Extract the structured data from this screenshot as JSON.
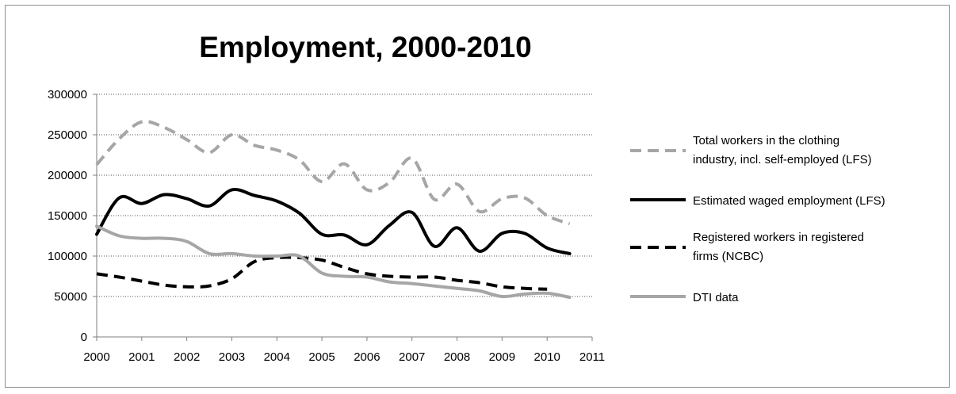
{
  "chart_data": {
    "type": "line",
    "title": "Employment, 2000-2010",
    "xlabel": "",
    "ylabel": "",
    "xlim": [
      2000,
      2011
    ],
    "ylim": [
      0,
      300000
    ],
    "x_ticks": [
      "2000",
      "2001",
      "2002",
      "2003",
      "2004",
      "2005",
      "2006",
      "2007",
      "2008",
      "2009",
      "2010",
      "2011"
    ],
    "y_ticks": [
      "0",
      "50000",
      "100000",
      "150000",
      "200000",
      "250000",
      "300000"
    ],
    "grid": "horizontal dotted",
    "legend_position": "right",
    "series": [
      {
        "name": "Total workers in the clothing industry, incl. self-employed (LFS)",
        "legend_lines": [
          "Total workers in the clothing",
          "industry, incl. self-employed (LFS)"
        ],
        "color": "#a6a6a6",
        "style": "dashed",
        "x": [
          2000,
          2000.5,
          2001,
          2001.5,
          2002,
          2002.5,
          2003,
          2003.5,
          2004,
          2004.5,
          2005,
          2005.5,
          2006,
          2006.5,
          2007,
          2007.5,
          2008,
          2008.5,
          2009,
          2009.5,
          2010,
          2010.5
        ],
        "values": [
          213000,
          245000,
          266000,
          259000,
          244000,
          228000,
          250000,
          237000,
          231000,
          219000,
          192000,
          214000,
          182000,
          191000,
          221000,
          170000,
          189000,
          155000,
          171000,
          172000,
          150000,
          140000
        ]
      },
      {
        "name": "Estimated waged employment (LFS)",
        "legend_lines": [
          "Estimated waged employment (LFS)"
        ],
        "color": "#000000",
        "style": "solid",
        "x": [
          2000,
          2000.5,
          2001,
          2001.5,
          2002,
          2002.5,
          2003,
          2003.5,
          2004,
          2004.5,
          2005,
          2005.5,
          2006,
          2006.5,
          2007,
          2007.5,
          2008,
          2008.5,
          2009,
          2009.5,
          2010,
          2010.5
        ],
        "values": [
          127000,
          172000,
          165000,
          176000,
          171000,
          162000,
          182000,
          175000,
          168000,
          153000,
          127000,
          126000,
          114000,
          138000,
          154000,
          112000,
          135000,
          106000,
          128000,
          128000,
          110000,
          103000
        ]
      },
      {
        "name": "Registered workers in registered firms (NCBC)",
        "legend_lines": [
          "Registered workers in registered",
          "firms (NCBC)"
        ],
        "color": "#000000",
        "style": "dashed",
        "x": [
          2000,
          2000.5,
          2001,
          2001.5,
          2002,
          2002.5,
          2003,
          2003.5,
          2004,
          2004.5,
          2005,
          2005.5,
          2006,
          2006.5,
          2007,
          2007.5,
          2008,
          2008.5,
          2009,
          2009.5,
          2010
        ],
        "values": [
          78000,
          74000,
          69000,
          64000,
          62000,
          63000,
          72000,
          93000,
          98000,
          98000,
          95000,
          86000,
          78000,
          75000,
          74000,
          74000,
          70000,
          67000,
          62000,
          60000,
          59000
        ]
      },
      {
        "name": "DTI data",
        "legend_lines": [
          "DTI data"
        ],
        "color": "#a6a6a6",
        "style": "solid",
        "x": [
          2000,
          2000.5,
          2001,
          2001.5,
          2002,
          2002.5,
          2003,
          2003.5,
          2004,
          2004.5,
          2005,
          2005.5,
          2006,
          2006.5,
          2007,
          2007.5,
          2008,
          2008.5,
          2009,
          2009.5,
          2010,
          2010.5
        ],
        "values": [
          137000,
          125000,
          122000,
          122000,
          118000,
          103000,
          103000,
          100000,
          100000,
          100000,
          79000,
          75000,
          74000,
          68000,
          66000,
          63000,
          60000,
          57000,
          50000,
          53000,
          54000,
          49000
        ]
      }
    ]
  }
}
